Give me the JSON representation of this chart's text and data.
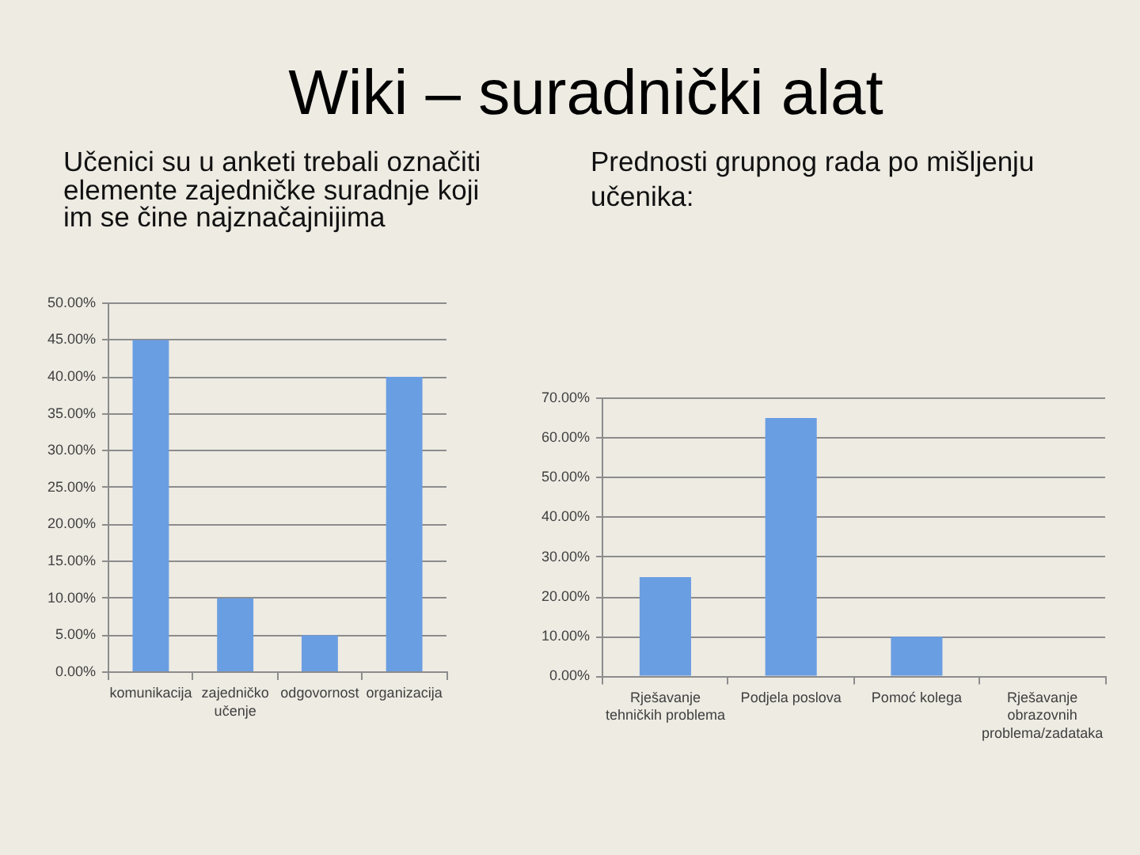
{
  "chart_data": [
    {
      "type": "bar",
      "title": "Wiki – suradnički alat",
      "subtitle": "Učenici su u anketi trebali označiti elemente zajedničke suradnje koji im se čine najznačajnijima",
      "categories": [
        "komunikacija",
        "zajedničko učenje",
        "odgovornost",
        "organizacija"
      ],
      "values": [
        45,
        10,
        5,
        40
      ],
      "color": "#6a9ee2",
      "ylim": [
        0,
        50
      ],
      "yticks": [
        {
          "value": 0,
          "label": "0.00%"
        },
        {
          "value": 5,
          "label": "5.00%"
        },
        {
          "value": 10,
          "label": "10.00%"
        },
        {
          "value": 15,
          "label": "15.00%"
        },
        {
          "value": 20,
          "label": "20.00%"
        },
        {
          "value": 25,
          "label": "25.00%"
        },
        {
          "value": 30,
          "label": "30.00%"
        },
        {
          "value": 35,
          "label": "35.00%"
        },
        {
          "value": 40,
          "label": "40.00%"
        },
        {
          "value": 45,
          "label": "45.00%"
        },
        {
          "value": 50,
          "label": "50.00%"
        }
      ],
      "grid": "y"
    },
    {
      "type": "bar",
      "subtitle": "Prednosti grupnog rada po mišljenju učenika:",
      "categories": [
        "Rješavanje tehničkih problema",
        "Podjela poslova",
        "Pomoć kolega",
        "Rješavanje obrazovnih problema/zadataka"
      ],
      "values": [
        25,
        65,
        10,
        0
      ],
      "color": "#6a9ee2",
      "ylim": [
        0,
        70
      ],
      "yticks": [
        {
          "value": 0,
          "label": "0.00%"
        },
        {
          "value": 10,
          "label": "10.00%"
        },
        {
          "value": 20,
          "label": "20.00%"
        },
        {
          "value": 30,
          "label": "30.00%"
        },
        {
          "value": 40,
          "label": "40.00%"
        },
        {
          "value": 50,
          "label": "50.00%"
        },
        {
          "value": 60,
          "label": "60.00%"
        },
        {
          "value": 70,
          "label": "70.00%"
        }
      ],
      "grid": "y"
    }
  ]
}
